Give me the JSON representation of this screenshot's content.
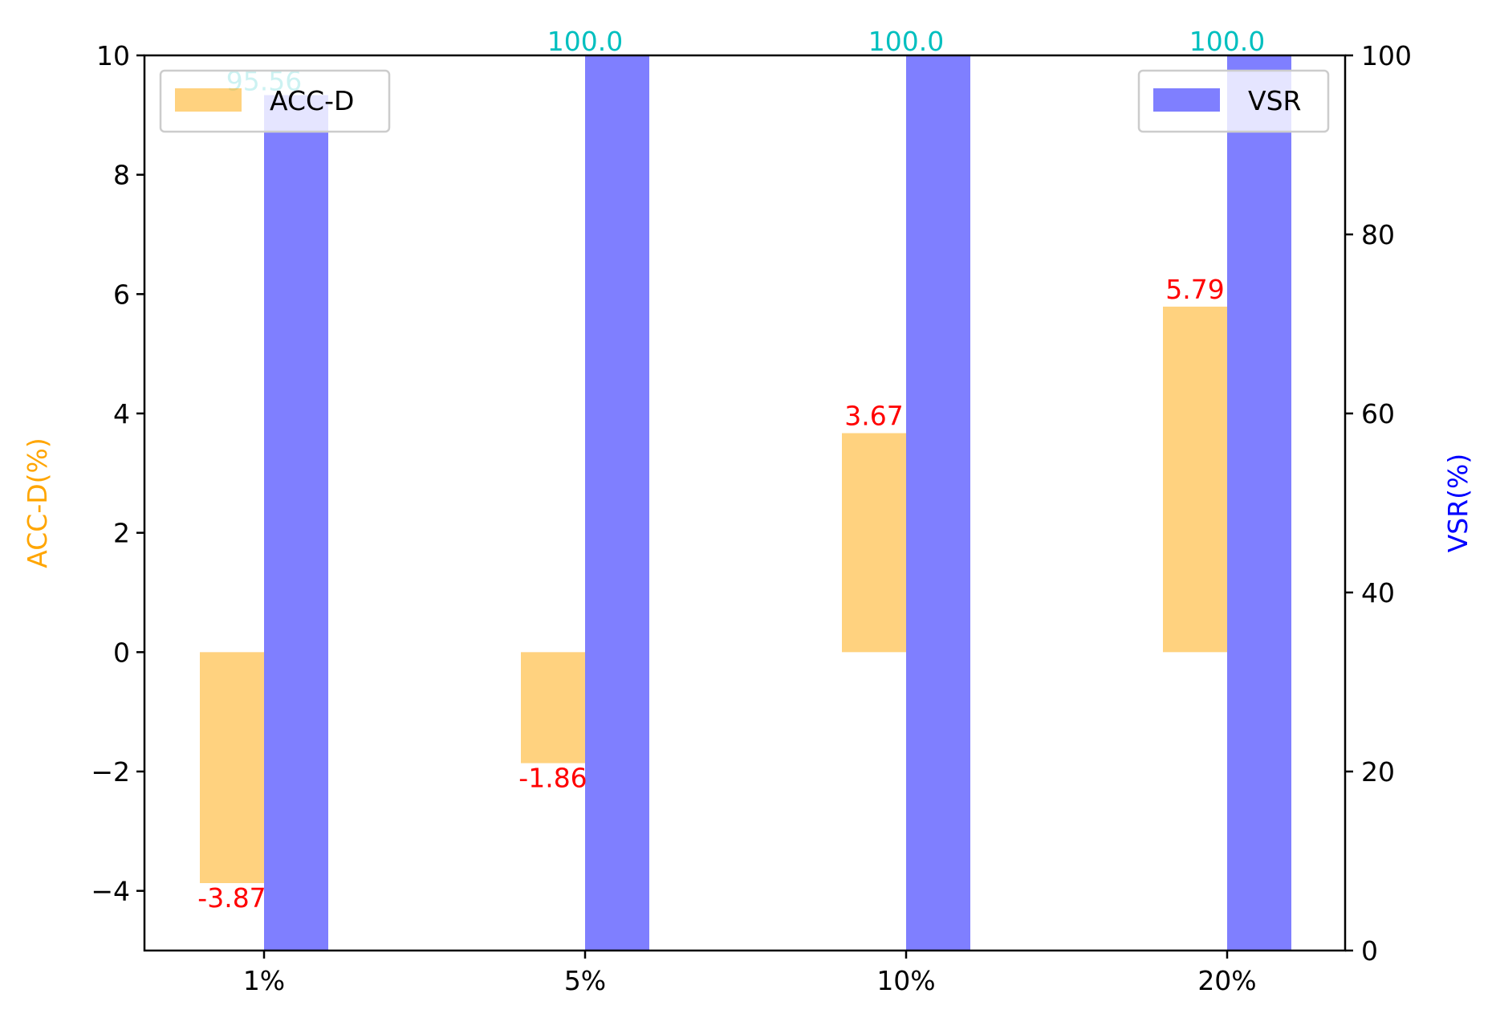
{
  "chart_data": {
    "type": "bar",
    "categories": [
      "1%",
      "5%",
      "10%",
      "20%"
    ],
    "series": [
      {
        "name": "ACC-D",
        "axis": "left",
        "color": "#ffa500",
        "opacity": 0.5,
        "values": [
          -3.87,
          -1.86,
          3.67,
          5.79
        ],
        "data_labels": [
          "-3.87",
          "-1.86",
          "3.67",
          "5.79"
        ],
        "label_color": "#ff0000"
      },
      {
        "name": "VSR",
        "axis": "right",
        "color": "#0000ff",
        "opacity": 0.5,
        "values": [
          95.56,
          100.0,
          100.0,
          100.0
        ],
        "data_labels": [
          "95.56",
          "100.0",
          "100.0",
          "100.0"
        ],
        "label_color": "#00bfbf"
      }
    ],
    "ylabel_left": "ACC-D(%)",
    "ylabel_left_color": "#ffa500",
    "ylim_left": [
      -5,
      10
    ],
    "yticks_left": [
      -4,
      -2,
      0,
      2,
      4,
      6,
      8,
      10
    ],
    "ytick_labels_left": [
      "−4",
      "−2",
      "0",
      "2",
      "4",
      "6",
      "8",
      "10"
    ],
    "ylabel_right": "VSR(%)",
    "ylabel_right_color": "#0000ff",
    "ylim_right": [
      0,
      100
    ],
    "yticks_right": [
      0,
      20,
      40,
      60,
      80,
      100
    ],
    "ytick_labels_right": [
      "0",
      "20",
      "40",
      "60",
      "80",
      "100"
    ],
    "legend_left_placement": "upper-left",
    "legend_right_placement": "upper-right",
    "grid": false
  }
}
